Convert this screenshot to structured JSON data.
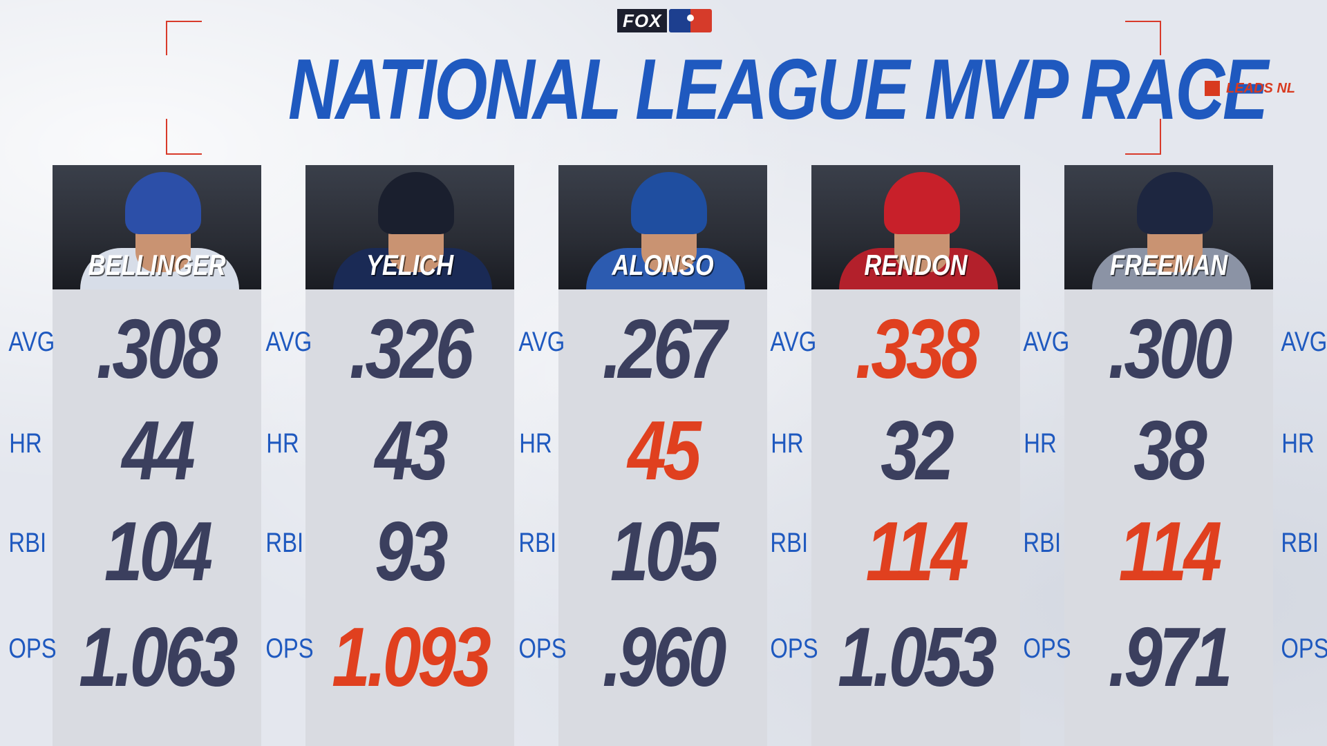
{
  "header": {
    "network_logo": "FOX",
    "league_logo": "mlb-logo",
    "title": "NATIONAL LEAGUE MVP RACE",
    "legend_label": "LEADS NL",
    "legend_color": "#d83a1f",
    "title_color": "#1f59bf",
    "bracket_color": "#d83a2a"
  },
  "stat_labels": [
    "AVG",
    "HR",
    "RBI",
    "OPS"
  ],
  "colors": {
    "stat_normal": "#3b3f5e",
    "stat_leader": "#e0401f",
    "label": "#1f59bf"
  },
  "players": [
    {
      "name": "BELLINGER",
      "helmet_color": "#2c4fa8",
      "jersey_color": "#d7dde8",
      "stats": {
        "AVG": ".308",
        "HR": "44",
        "RBI": "104",
        "OPS": "1.063"
      },
      "leads": {
        "AVG": false,
        "HR": false,
        "RBI": false,
        "OPS": false
      }
    },
    {
      "name": "YELICH",
      "helmet_color": "#1a1f2e",
      "jersey_color": "#1a2a55",
      "stats": {
        "AVG": ".326",
        "HR": "43",
        "RBI": "93",
        "OPS": "1.093"
      },
      "leads": {
        "AVG": false,
        "HR": false,
        "RBI": false,
        "OPS": true
      }
    },
    {
      "name": "ALONSO",
      "helmet_color": "#1f4ea0",
      "jersey_color": "#2c5bb0",
      "stats": {
        "AVG": ".267",
        "HR": "45",
        "RBI": "105",
        "OPS": ".960"
      },
      "leads": {
        "AVG": false,
        "HR": true,
        "RBI": false,
        "OPS": false
      }
    },
    {
      "name": "RENDON",
      "helmet_color": "#c8202a",
      "jersey_color": "#b3202b",
      "stats": {
        "AVG": ".338",
        "HR": "32",
        "RBI": "114",
        "OPS": "1.053"
      },
      "leads": {
        "AVG": true,
        "HR": false,
        "RBI": true,
        "OPS": false
      }
    },
    {
      "name": "FREEMAN",
      "helmet_color": "#1d2640",
      "jersey_color": "#8b93a5",
      "stats": {
        "AVG": ".300",
        "HR": "38",
        "RBI": "114",
        "OPS": ".971"
      },
      "leads": {
        "AVG": false,
        "HR": false,
        "RBI": true,
        "OPS": false
      }
    }
  ]
}
